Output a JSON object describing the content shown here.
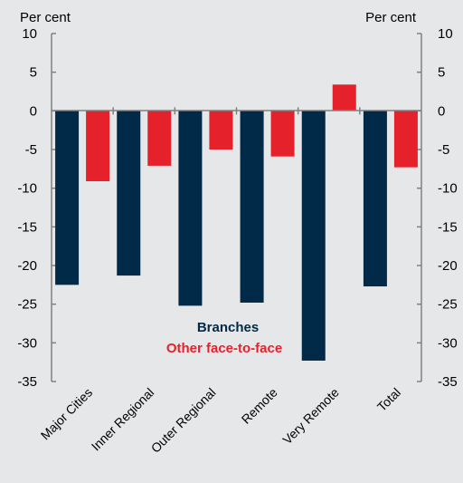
{
  "chart_data": {
    "type": "bar",
    "left_axis_unit": "Per cent",
    "right_axis_unit": "Per cent",
    "categories": [
      "Major Cities",
      "Inner Regional",
      "Outer Regional",
      "Remote",
      "Very Remote",
      "Total"
    ],
    "series": [
      {
        "name": "Branches",
        "color": "#002a48",
        "values": [
          -22.5,
          -21.3,
          -25.2,
          -24.8,
          -32.3,
          -22.7
        ]
      },
      {
        "name": "Other face-to-face",
        "color": "#e5222c",
        "values": [
          -9.1,
          -7.1,
          -5.0,
          -5.9,
          3.4,
          -7.3
        ]
      }
    ],
    "ylim": [
      -35,
      10
    ],
    "yticks": [
      10,
      5,
      0,
      -5,
      -10,
      -15,
      -20,
      -25,
      -30,
      -35
    ],
    "legend_position": "inside, center-bottom",
    "grid": false
  }
}
